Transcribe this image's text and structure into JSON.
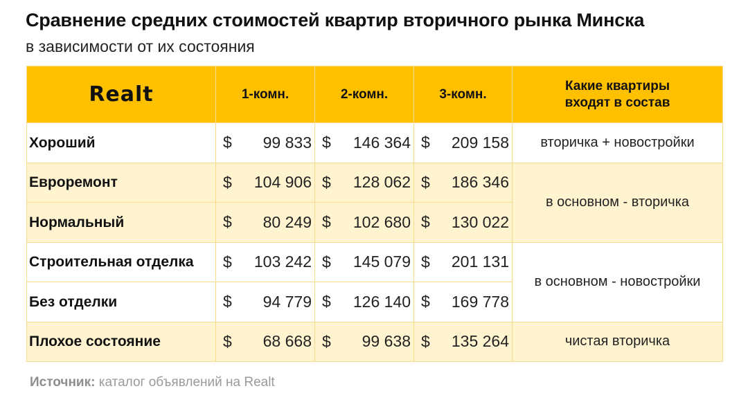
{
  "title": "Сравнение средних стоимостей квартир вторичного рынка Минска",
  "subtitle": "в зависимости от их состояния",
  "brand": "Realt",
  "colors": {
    "header_bg": "#ffc000",
    "alt_row_bg": "#fff4cf",
    "border": "#f6dc8c"
  },
  "chart_data": {
    "type": "table",
    "columns": [
      "1-комн.",
      "2-комн.",
      "3-комн.",
      "Какие квартиры входят в состав"
    ],
    "currency": "$",
    "rows": [
      {
        "label": "Хороший",
        "values": [
          "99 833",
          "146 364",
          "209 158"
        ]
      },
      {
        "label": "Евроремонт",
        "values": [
          "104 906",
          "128 062",
          "186 346"
        ]
      },
      {
        "label": "Нормальный",
        "values": [
          "80 249",
          "102 680",
          "130 022"
        ]
      },
      {
        "label": "Строительная отделка",
        "values": [
          "103 242",
          "145 079",
          "201 131"
        ]
      },
      {
        "label": "Без отделки",
        "values": [
          "94 779",
          "126 140",
          "169 778"
        ]
      },
      {
        "label": "Плохое состояние",
        "values": [
          "68 668",
          "99 638",
          "135 264"
        ]
      }
    ],
    "notes": [
      {
        "text": "вторичка + новостройки",
        "rows": [
          "Хороший"
        ]
      },
      {
        "text": "в основном - вторичка",
        "rows": [
          "Евроремонт",
          "Нормальный"
        ]
      },
      {
        "text": "в основном - новостройки",
        "rows": [
          "Строительная отделка",
          "Без отделки"
        ]
      },
      {
        "text": "чистая вторичка",
        "rows": [
          "Плохое состояние"
        ]
      }
    ]
  },
  "table": {
    "head_note_line1": "Какие квартиры",
    "head_note_line2": "входят в состав"
  },
  "source": {
    "label": "Источник:",
    "text": "каталог объявлений на Realt"
  }
}
